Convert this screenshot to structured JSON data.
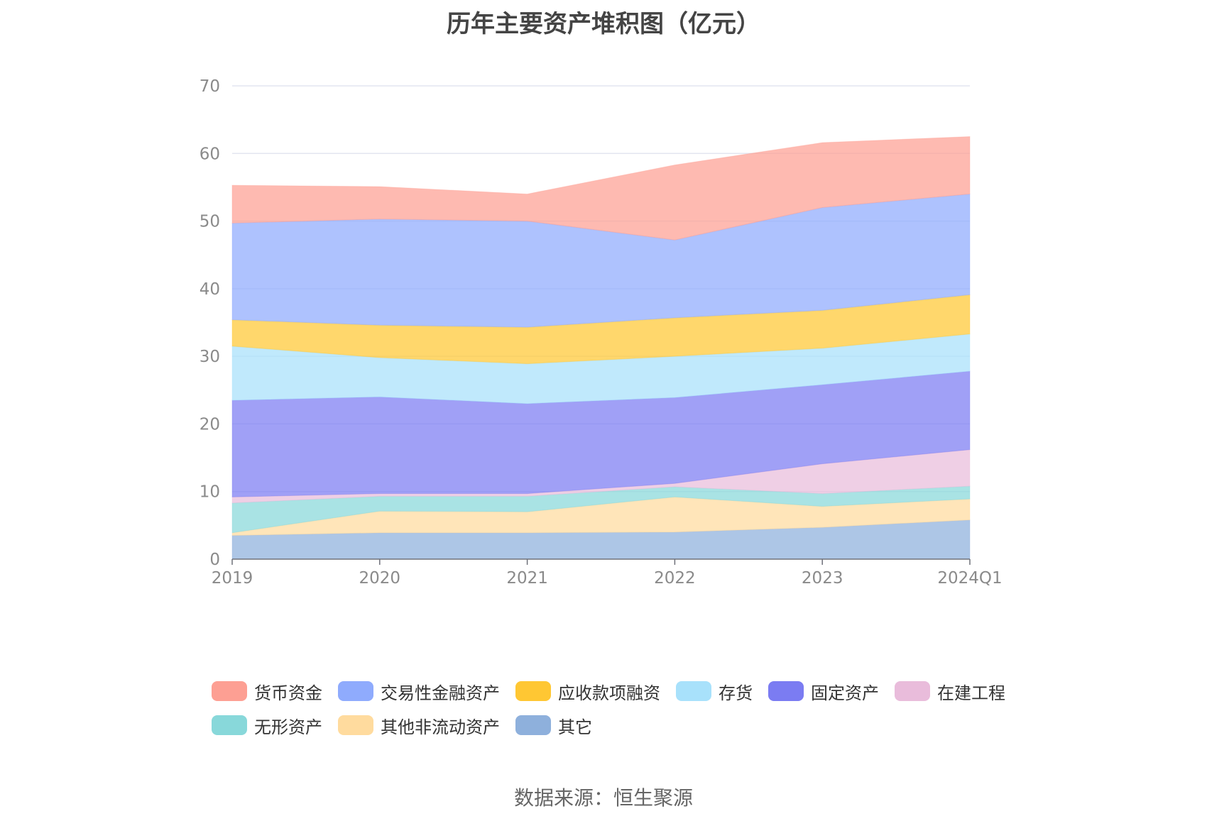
{
  "chart_data": {
    "type": "area",
    "stacked": true,
    "title": "历年主要资产堆积图（亿元）",
    "x": [
      "2019",
      "2020",
      "2021",
      "2022",
      "2023",
      "2024Q1"
    ],
    "ylim": [
      0,
      70
    ],
    "yticks": [
      0,
      10,
      20,
      30,
      40,
      50,
      60,
      70
    ],
    "grid": true,
    "legend_position": "bottom",
    "series": [
      {
        "name": "其它",
        "color": "#8eb0dc",
        "values": [
          3.5,
          3.9,
          3.9,
          4.0,
          4.7,
          5.8
        ]
      },
      {
        "name": "其他非流动资产",
        "color": "#ffdb9e",
        "values": [
          0.4,
          3.2,
          3.1,
          5.2,
          3.1,
          3.1
        ]
      },
      {
        "name": "无形资产",
        "color": "#88d8da",
        "values": [
          4.4,
          2.2,
          2.3,
          1.5,
          1.9,
          1.9
        ]
      },
      {
        "name": "在建工程",
        "color": "#e9bcdb",
        "values": [
          0.9,
          0.4,
          0.4,
          0.5,
          4.4,
          5.4
        ]
      },
      {
        "name": "固定资产",
        "color": "#7b7cf2",
        "values": [
          14.3,
          14.3,
          13.3,
          12.7,
          11.7,
          11.6
        ]
      },
      {
        "name": "存货",
        "color": "#a8e1fb",
        "values": [
          8.0,
          5.8,
          5.9,
          6.1,
          5.4,
          5.5
        ]
      },
      {
        "name": "应收款项融资",
        "color": "#ffc733",
        "values": [
          3.9,
          4.8,
          5.4,
          5.7,
          5.6,
          5.8
        ]
      },
      {
        "name": "交易性金融资产",
        "color": "#8fabfd",
        "values": [
          14.3,
          15.7,
          15.7,
          11.5,
          15.2,
          14.9
        ]
      },
      {
        "name": "货币资金",
        "color": "#fd9f93",
        "values": [
          5.6,
          4.8,
          4.0,
          11.1,
          9.6,
          8.5
        ]
      }
    ]
  },
  "legend": {
    "row1": [
      {
        "label": "货币资金",
        "color": "#fd9f93"
      },
      {
        "label": "交易性金融资产",
        "color": "#8fabfd"
      },
      {
        "label": "应收款项融资",
        "color": "#ffc733"
      },
      {
        "label": "存货",
        "color": "#a8e1fb"
      },
      {
        "label": "固定资产",
        "color": "#7b7cf2"
      },
      {
        "label": "在建工程",
        "color": "#e9bcdb"
      }
    ],
    "row2": [
      {
        "label": "无形资产",
        "color": "#88d8da"
      },
      {
        "label": "其他非流动资产",
        "color": "#ffdb9e"
      },
      {
        "label": "其它",
        "color": "#8eb0dc"
      }
    ]
  },
  "source": "数据来源：恒生聚源"
}
